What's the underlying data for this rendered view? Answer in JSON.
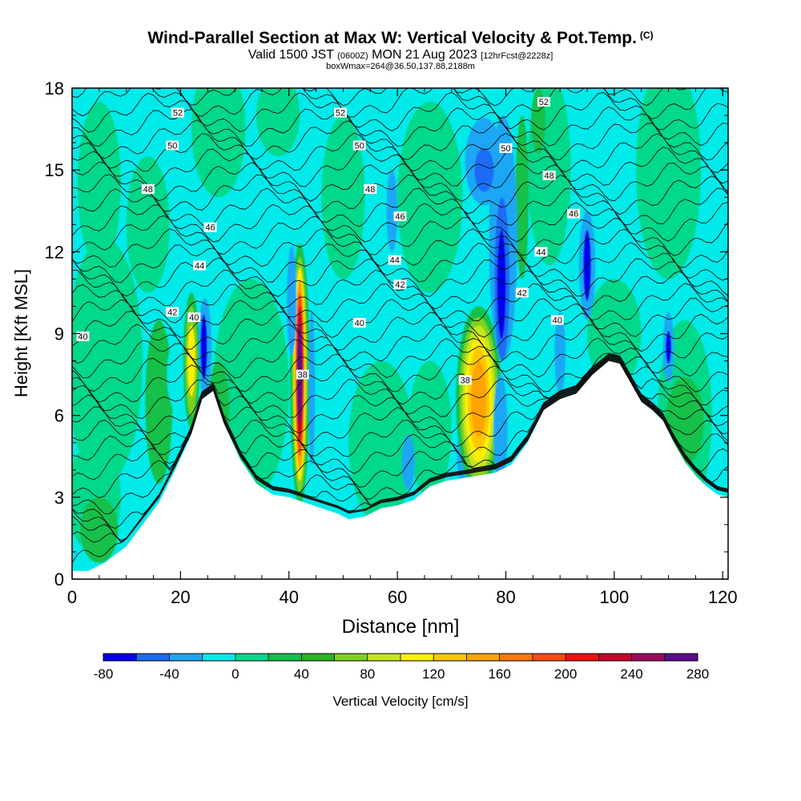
{
  "title": {
    "main": "Wind-Parallel Section at Max W: Vertical Velocity & Pot.Temp.",
    "copyright": "(C)",
    "valid_a": "Valid 1500 JST",
    "valid_b": "(0600Z)",
    "valid_c": "MON 21 Aug 2023",
    "valid_d": "[12hrFcst@2228z]",
    "box": "boxWmax=264@36.50,137.88,2188m"
  },
  "chart_data": {
    "type": "heatmap",
    "xlabel": "Distance [nm]",
    "ylabel": "Height [Kft MSL]",
    "xlim": [
      0,
      121
    ],
    "ylim": [
      0,
      18
    ],
    "xticks": [
      0,
      20,
      40,
      60,
      80,
      100,
      120
    ],
    "yticks": [
      0,
      3,
      6,
      9,
      12,
      15,
      18
    ],
    "colorbar": {
      "label": "Vertical Velocity [cm/s]",
      "levels": [
        -80,
        -60,
        -40,
        -20,
        0,
        20,
        40,
        60,
        80,
        100,
        120,
        140,
        160,
        180,
        200,
        220,
        240,
        260,
        280
      ],
      "tick_labels": [
        "-80",
        "-40",
        "0",
        "40",
        "80",
        "120",
        "160",
        "200",
        "240",
        "280"
      ],
      "colors": [
        "#0000ee",
        "#1a6cf6",
        "#1fa7f5",
        "#00eaea",
        "#00d88a",
        "#12c04a",
        "#28b41c",
        "#7ed21e",
        "#c6e61c",
        "#fff000",
        "#ffc800",
        "#ffa400",
        "#ff7800",
        "#ff4a10",
        "#f21010",
        "#c8002c",
        "#9b0a5e",
        "#5c0c8c"
      ]
    },
    "terrain_height_kft": [
      [
        0,
        0.3
      ],
      [
        3,
        0.3
      ],
      [
        6,
        0.6
      ],
      [
        10,
        1.2
      ],
      [
        13,
        2.0
      ],
      [
        16,
        2.8
      ],
      [
        19,
        4.0
      ],
      [
        22,
        5.3
      ],
      [
        24,
        6.6
      ],
      [
        26,
        6.9
      ],
      [
        28,
        5.7
      ],
      [
        31,
        4.4
      ],
      [
        34,
        3.5
      ],
      [
        37,
        3.1
      ],
      [
        40,
        3.0
      ],
      [
        43,
        2.8
      ],
      [
        46,
        2.6
      ],
      [
        49,
        2.4
      ],
      [
        51,
        2.2
      ],
      [
        54,
        2.3
      ],
      [
        57,
        2.6
      ],
      [
        60,
        2.7
      ],
      [
        63,
        2.9
      ],
      [
        66,
        3.4
      ],
      [
        69,
        3.6
      ],
      [
        72,
        3.7
      ],
      [
        75,
        3.8
      ],
      [
        78,
        3.9
      ],
      [
        81,
        4.2
      ],
      [
        84,
        5.0
      ],
      [
        87,
        6.2
      ],
      [
        90,
        6.6
      ],
      [
        93,
        6.8
      ],
      [
        96,
        7.5
      ],
      [
        99,
        8.0
      ],
      [
        101,
        7.9
      ],
      [
        103,
        7.2
      ],
      [
        105,
        6.5
      ],
      [
        107,
        6.2
      ],
      [
        109,
        5.8
      ],
      [
        111,
        5.0
      ],
      [
        113,
        4.3
      ],
      [
        115,
        3.8
      ],
      [
        117,
        3.4
      ],
      [
        119,
        3.1
      ],
      [
        121,
        3.0
      ]
    ],
    "velocity_features": [
      {
        "kind": "updraft",
        "x": 42,
        "y": 7.5,
        "w_max": 264
      },
      {
        "kind": "updraft",
        "x": 75,
        "y": 6.6,
        "w_max": 140
      },
      {
        "kind": "updraft",
        "x": 22,
        "y": 8.0,
        "w_max": 100
      },
      {
        "kind": "updraft",
        "x": 85,
        "y": 16.8,
        "w_max": 30
      },
      {
        "kind": "downdraft",
        "x": 79.5,
        "y": 11.0,
        "w_min": -80
      },
      {
        "kind": "downdraft",
        "x": 95,
        "y": 11.5,
        "w_min": -80
      },
      {
        "kind": "downdraft",
        "x": 24.5,
        "y": 8.5,
        "w_min": -70
      },
      {
        "kind": "downdraft",
        "x": 44,
        "y": 7.0,
        "w_min": -40
      },
      {
        "kind": "downdraft",
        "x": 40,
        "y": 10.0,
        "w_min": -40
      },
      {
        "kind": "downdraft",
        "x": 75,
        "y": 15.0,
        "w_min": -60
      },
      {
        "kind": "downdraft",
        "x": 59,
        "y": 13.5,
        "w_min": -40
      },
      {
        "kind": "downdraft",
        "x": 110,
        "y": 8.5,
        "w_min": -70
      }
    ],
    "theta_contours": [
      {
        "label": "38",
        "x": 42.5,
        "y": 7.5
      },
      {
        "label": "38",
        "x": 72.5,
        "y": 7.3
      },
      {
        "label": "40",
        "x": 2,
        "y": 8.9
      },
      {
        "label": "40",
        "x": 22.5,
        "y": 9.6
      },
      {
        "label": "40",
        "x": 53,
        "y": 9.4
      },
      {
        "label": "40",
        "x": 89.5,
        "y": 9.5
      },
      {
        "label": "42",
        "x": 18.5,
        "y": 9.8
      },
      {
        "label": "42",
        "x": 83,
        "y": 10.5
      },
      {
        "label": "42",
        "x": 60.5,
        "y": 10.8
      },
      {
        "label": "44",
        "x": 23.5,
        "y": 11.5
      },
      {
        "label": "44",
        "x": 59.5,
        "y": 11.7
      },
      {
        "label": "44",
        "x": 86.5,
        "y": 12.0
      },
      {
        "label": "46",
        "x": 25.5,
        "y": 12.9
      },
      {
        "label": "46",
        "x": 60.5,
        "y": 13.3
      },
      {
        "label": "46",
        "x": 92.5,
        "y": 13.4
      },
      {
        "label": "48",
        "x": 14,
        "y": 14.3
      },
      {
        "label": "48",
        "x": 55,
        "y": 14.3
      },
      {
        "label": "48",
        "x": 88,
        "y": 14.8
      },
      {
        "label": "50",
        "x": 18.5,
        "y": 15.9
      },
      {
        "label": "50",
        "x": 53,
        "y": 15.9
      },
      {
        "label": "50",
        "x": 80,
        "y": 15.8
      },
      {
        "label": "52",
        "x": 19.5,
        "y": 17.1
      },
      {
        "label": "52",
        "x": 49.5,
        "y": 17.1
      },
      {
        "label": "52",
        "x": 87,
        "y": 17.5
      }
    ]
  }
}
